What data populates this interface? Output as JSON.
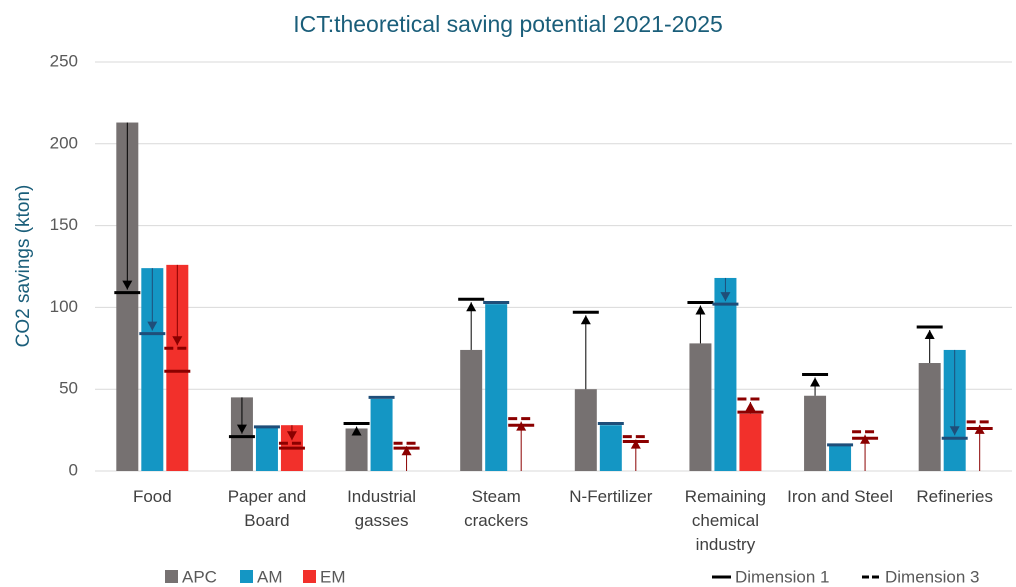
{
  "chart_data": {
    "type": "bar",
    "title": "ICT:theoretical saving potential 2021-2025",
    "y_label": "CO2 savings (kton)",
    "categories": [
      "Food",
      "Paper and Board",
      "Industrial gasses",
      "Steam crackers",
      "N-Fertilizer",
      "Remaining chemical industry",
      "Iron and Steel",
      "Refineries"
    ],
    "series": [
      {
        "name": "APC",
        "color": "#767171",
        "marker_color": "#000000",
        "values": [
          213,
          45,
          26,
          74,
          50,
          78,
          46,
          66
        ],
        "dimension1": [
          109,
          21,
          29,
          105,
          97,
          103,
          59,
          88
        ],
        "dimension3": [
          null,
          null,
          null,
          null,
          null,
          null,
          null,
          null
        ]
      },
      {
        "name": "AM",
        "color": "#1496c4",
        "marker_color": "#1f4e79",
        "values": [
          124,
          27,
          44,
          102,
          28,
          118,
          16,
          74
        ],
        "dimension1": [
          84,
          27,
          45,
          103,
          29,
          102,
          16,
          20
        ],
        "dimension3": [
          null,
          null,
          null,
          null,
          null,
          null,
          null,
          null
        ]
      },
      {
        "name": "EM",
        "color": "#f2302b",
        "marker_color": "#8b0000",
        "values": [
          126,
          28,
          0,
          0,
          0,
          35,
          0,
          0
        ],
        "dimension1": [
          61,
          14,
          14,
          28,
          18,
          36,
          20,
          26
        ],
        "dimension3": [
          75,
          17,
          17,
          32,
          21,
          44,
          24,
          30
        ]
      }
    ],
    "marker_legend": [
      "Dimension 1",
      "Dimension 3"
    ],
    "ylim": [
      0,
      250
    ],
    "yticks": [
      0,
      50,
      100,
      150,
      200,
      250
    ],
    "grid": true
  }
}
